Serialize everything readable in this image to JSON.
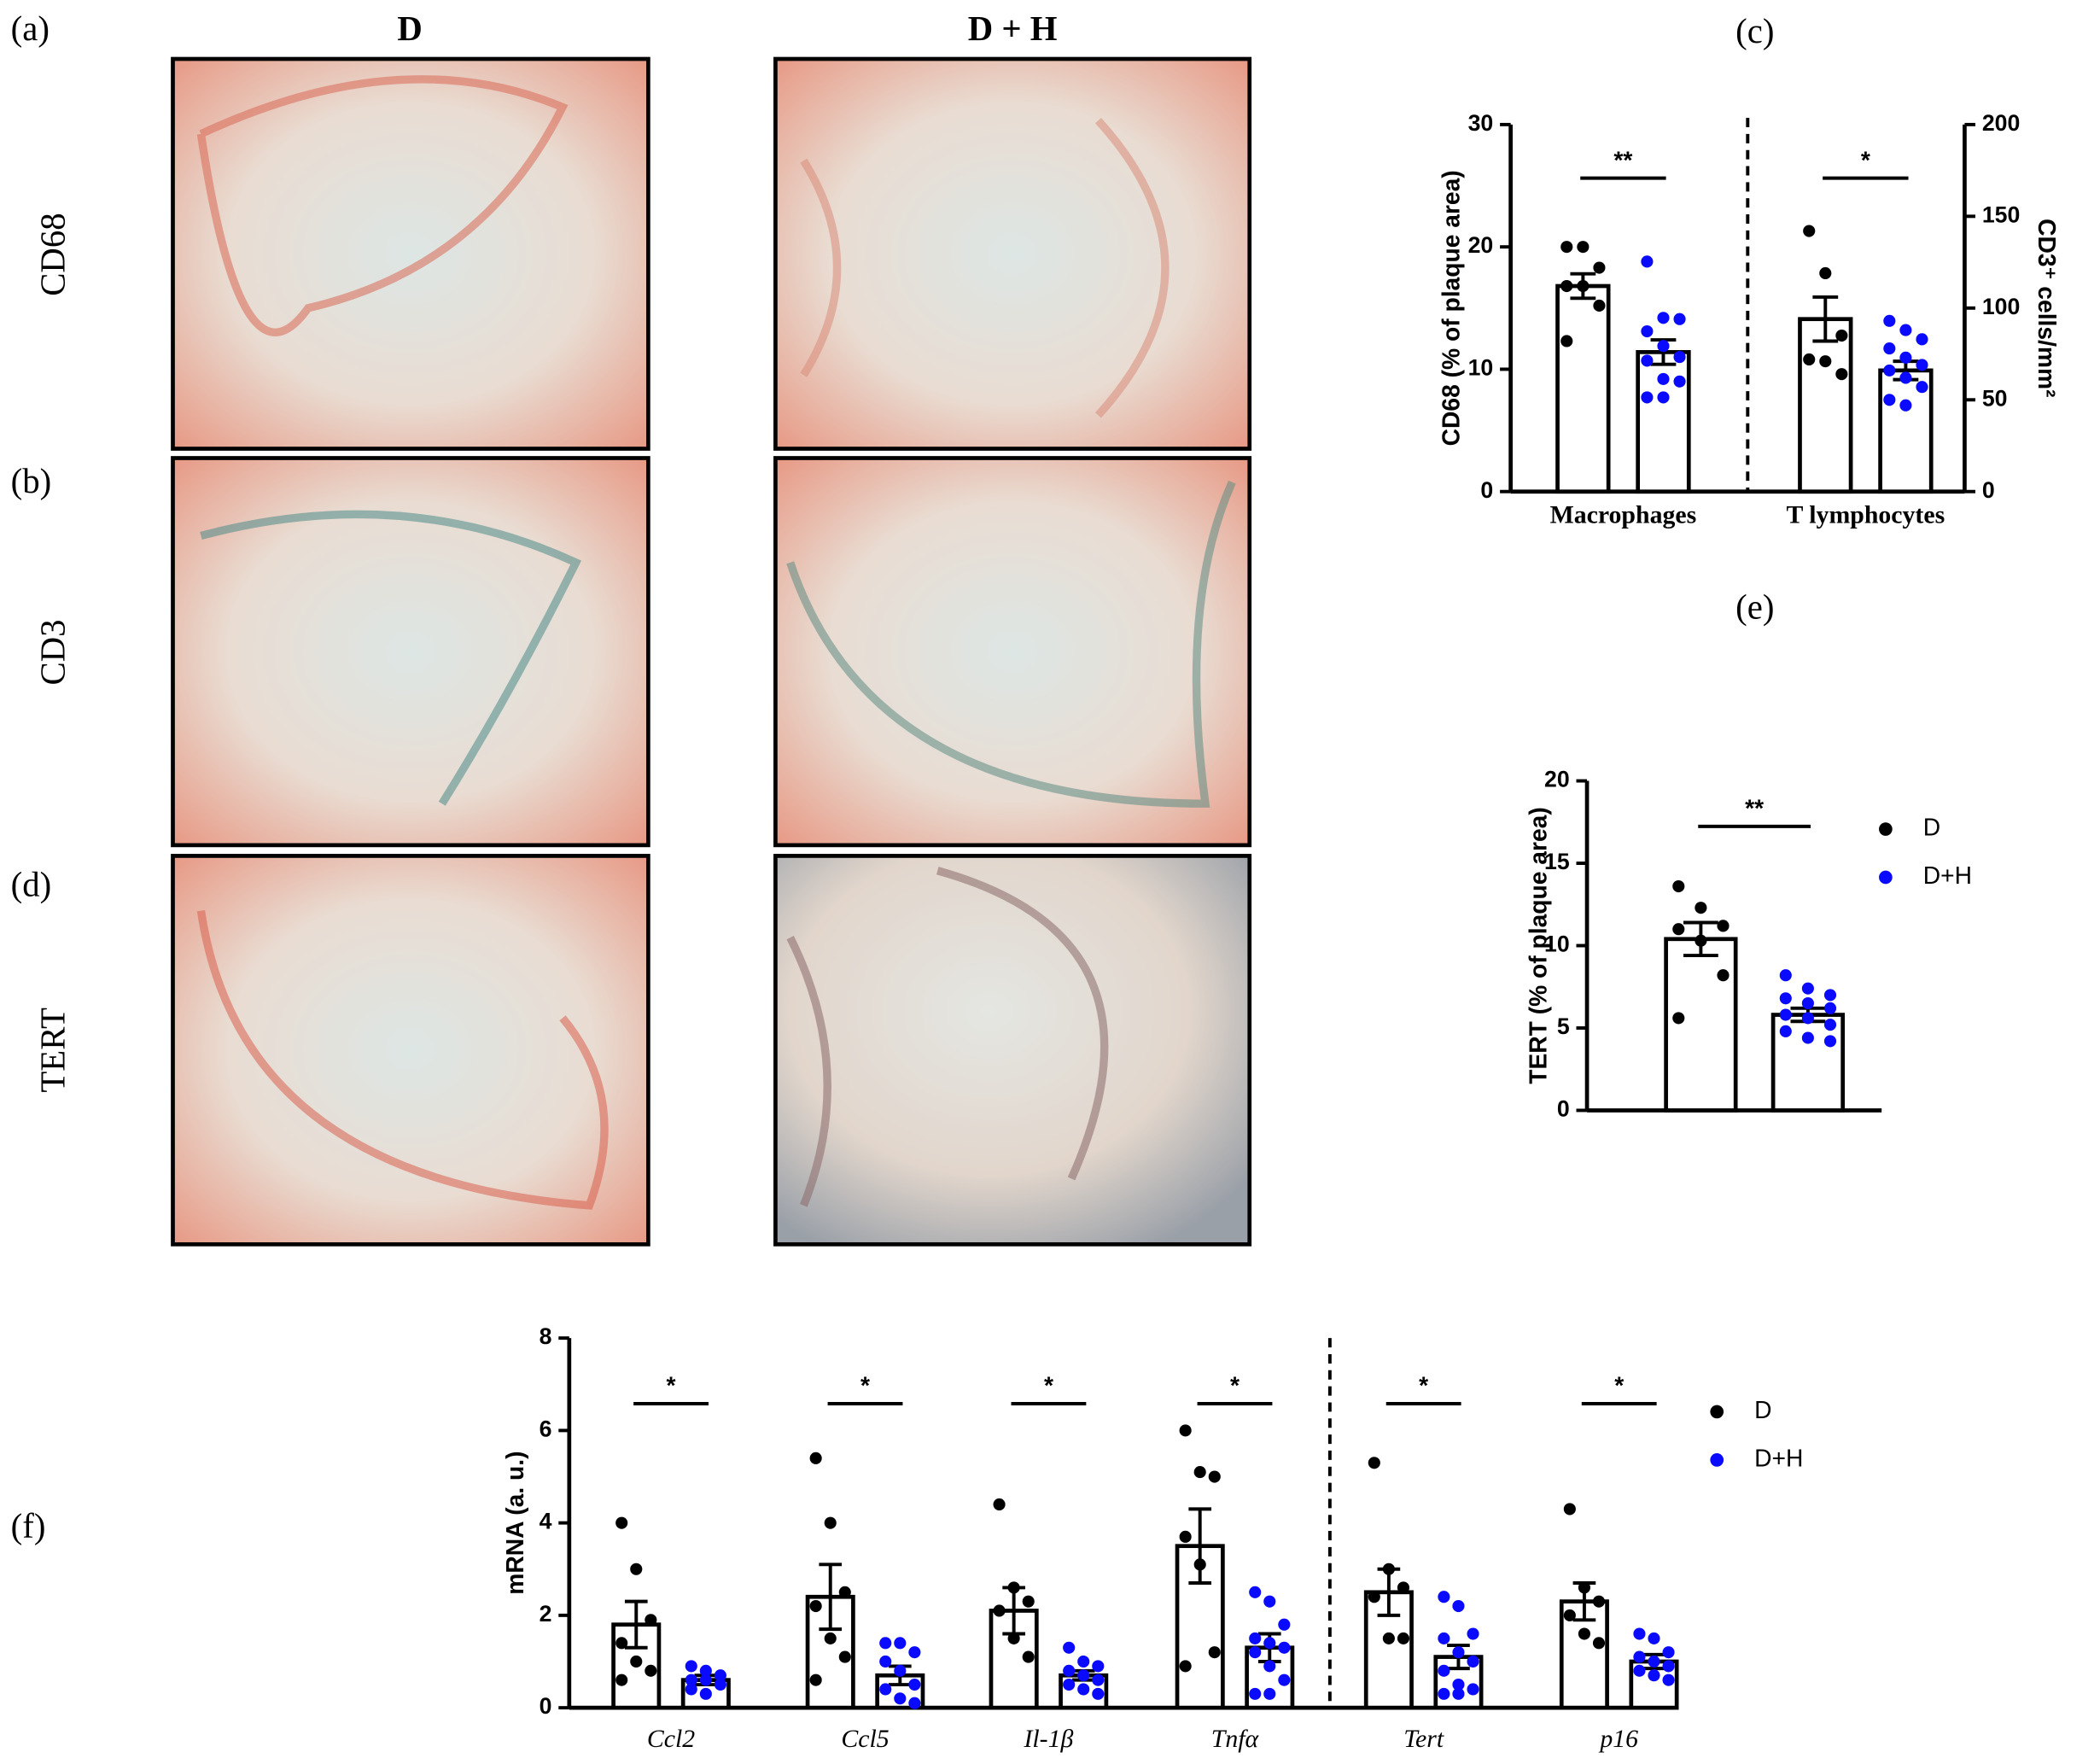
{
  "figure": {
    "panels": [
      "(a)",
      "(b)",
      "(c)",
      "(d)",
      "(e)",
      "(f)"
    ],
    "columns": [
      "D",
      "D + H"
    ],
    "rows": [
      "CD68",
      "CD3",
      "TERT"
    ]
  },
  "chart_data": [
    {
      "type": "bar",
      "ylabel": "CD68 (% of plaque area)",
      "y2label": "CD3⁺ cells/mm²",
      "categories": [
        "Macrophages",
        "T lymphocytes"
      ],
      "category_axis": [
        "y",
        "y2"
      ],
      "ylim": [
        0,
        30
      ],
      "yticks": [
        0,
        10,
        20,
        30
      ],
      "y2lim": [
        0,
        200
      ],
      "y2ticks": [
        0,
        50,
        100,
        150,
        200
      ],
      "significance": [
        "**",
        "*"
      ],
      "series": [
        {
          "color": "#000000",
          "values": [
            16.8,
            94
          ],
          "errors": [
            1.0,
            12
          ],
          "points": [
            [
              20.0,
              20.0,
              18.3,
              16.8,
              16.8,
              15.2,
              12.3
            ],
            [
              142,
              119,
              85,
              72,
              71,
              64
            ]
          ]
        },
        {
          "color": "#0a0aff",
          "values": [
            11.4,
            66
          ],
          "errors": [
            1.0,
            5
          ],
          "points": [
            [
              18.8,
              14.2,
              14.1,
              13.1,
              11.9,
              11.0,
              10.7,
              9.2,
              9.0,
              7.7,
              7.7
            ],
            [
              93,
              88,
              83,
              78,
              73,
              69,
              66,
              62,
              57,
              50,
              47
            ]
          ]
        }
      ]
    },
    {
      "type": "bar",
      "ylabel": "TERT (% of plaque area)",
      "categories": [
        null
      ],
      "ylim": [
        0,
        20
      ],
      "yticks": [
        0,
        5,
        10,
        15,
        20
      ],
      "significance": [
        "**"
      ],
      "legend": "right",
      "series": [
        {
          "name": "D",
          "color": "#000000",
          "values": [
            10.4
          ],
          "errors": [
            1.0
          ],
          "points": [
            [
              13.6,
              12.3,
              11.2,
              11.0,
              10.3,
              8.2,
              5.6
            ]
          ]
        },
        {
          "name": "D+H",
          "color": "#0a0aff",
          "values": [
            5.8
          ],
          "errors": [
            0.4
          ],
          "points": [
            [
              8.2,
              7.4,
              7.0,
              6.8,
              6.5,
              6.2,
              5.8,
              5.6,
              5.2,
              4.8,
              4.4,
              4.2
            ]
          ]
        }
      ]
    },
    {
      "type": "bar",
      "ylabel": "mRNA (a. u.)",
      "categories": [
        "Ccl2",
        "Ccl5",
        "Il-1β",
        "Tnfα",
        "Tert",
        "p16"
      ],
      "ylim": [
        0,
        8
      ],
      "yticks": [
        0,
        2,
        4,
        6,
        8
      ],
      "significance": [
        "*",
        "*",
        "*",
        "*",
        "*",
        "*"
      ],
      "legend": "right",
      "series": [
        {
          "name": "D",
          "color": "#000000",
          "values": [
            1.8,
            2.4,
            2.1,
            3.5,
            2.5,
            2.3
          ],
          "errors": [
            0.5,
            0.7,
            0.5,
            0.8,
            0.5,
            0.4
          ],
          "points": [
            [
              4.0,
              3.0,
              1.9,
              1.4,
              1.0,
              0.8,
              0.6
            ],
            [
              5.4,
              4.0,
              2.5,
              2.2,
              1.5,
              1.1,
              0.6
            ],
            [
              4.4,
              2.6,
              2.3,
              2.1,
              1.5,
              1.1
            ],
            [
              6.0,
              5.1,
              5.0,
              3.7,
              3.1,
              1.2,
              0.9
            ],
            [
              5.3,
              3.0,
              2.6,
              2.4,
              1.5,
              1.5
            ],
            [
              4.3,
              2.6,
              2.3,
              2.0,
              1.6,
              1.4
            ]
          ]
        },
        {
          "name": "D+H",
          "color": "#0a0aff",
          "values": [
            0.6,
            0.7,
            0.7,
            1.3,
            1.1,
            1.0
          ],
          "errors": [
            0.1,
            0.2,
            0.1,
            0.3,
            0.25,
            0.15
          ],
          "points": [
            [
              0.9,
              0.8,
              0.7,
              0.6,
              0.6,
              0.5,
              0.4,
              0.3
            ],
            [
              1.4,
              1.4,
              1.2,
              1.0,
              0.8,
              0.5,
              0.4,
              0.2,
              0.1
            ],
            [
              1.3,
              1.0,
              0.9,
              0.8,
              0.7,
              0.6,
              0.5,
              0.4,
              0.3
            ],
            [
              2.5,
              2.3,
              1.8,
              1.5,
              1.4,
              1.3,
              1.2,
              0.9,
              0.6,
              0.3,
              0.3
            ],
            [
              2.4,
              2.2,
              1.6,
              1.5,
              1.2,
              1.0,
              0.8,
              0.5,
              0.4,
              0.3,
              0.3
            ],
            [
              1.6,
              1.5,
              1.2,
              1.1,
              1.0,
              0.9,
              0.8,
              0.7,
              0.6
            ]
          ]
        }
      ]
    }
  ]
}
